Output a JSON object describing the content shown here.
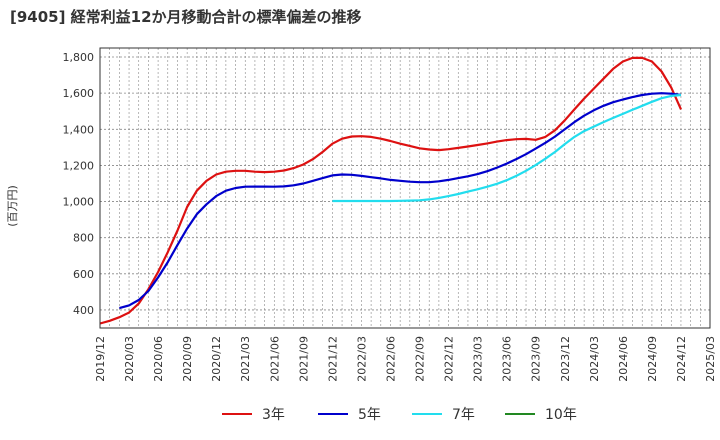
{
  "chart_data": {
    "type": "line",
    "title": "[9405]  経常利益12か月移動合計の標準偏差の推移",
    "ylabel": "(百万円)",
    "xlabel": "",
    "ylim": [
      300,
      1850
    ],
    "yticks": [
      400,
      600,
      800,
      1000,
      1200,
      1400,
      1600,
      1800
    ],
    "ytick_labels": [
      "400",
      "600",
      "800",
      "1,000",
      "1,200",
      "1,400",
      "1,600",
      "1,800"
    ],
    "x_start": "2019/12",
    "x_end": "2025/03",
    "xtick_labels": [
      "2019/12",
      "2020/03",
      "2020/06",
      "2020/09",
      "2020/12",
      "2021/03",
      "2021/06",
      "2021/09",
      "2021/12",
      "2022/03",
      "2022/06",
      "2022/09",
      "2022/12",
      "2023/03",
      "2023/06",
      "2023/09",
      "2023/12",
      "2024/03",
      "2024/06",
      "2024/09",
      "2024/12",
      "2025/03"
    ],
    "grid": true,
    "legend_position": "bottom",
    "series": [
      {
        "name": "3年",
        "color": "#dd1111",
        "x": [
          "2019/12",
          "2020/01",
          "2020/02",
          "2020/03",
          "2020/04",
          "2020/05",
          "2020/06",
          "2020/07",
          "2020/08",
          "2020/09",
          "2020/10",
          "2020/11",
          "2020/12",
          "2021/01",
          "2021/02",
          "2021/03",
          "2021/04",
          "2021/05",
          "2021/06",
          "2021/07",
          "2021/08",
          "2021/09",
          "2021/10",
          "2021/11",
          "2021/12",
          "2022/01",
          "2022/02",
          "2022/03",
          "2022/04",
          "2022/05",
          "2022/06",
          "2022/07",
          "2022/08",
          "2022/09",
          "2022/10",
          "2022/11",
          "2022/12",
          "2023/01",
          "2023/02",
          "2023/03",
          "2023/04",
          "2023/05",
          "2023/06",
          "2023/07",
          "2023/08",
          "2023/09",
          "2023/10",
          "2023/11",
          "2023/12",
          "2024/01",
          "2024/02",
          "2024/03",
          "2024/04",
          "2024/05",
          "2024/06",
          "2024/07",
          "2024/08",
          "2024/09",
          "2024/10",
          "2024/11",
          "2024/12"
        ],
        "values": [
          325,
          340,
          360,
          385,
          435,
          515,
          610,
          720,
          840,
          970,
          1060,
          1115,
          1150,
          1165,
          1170,
          1170,
          1165,
          1163,
          1165,
          1172,
          1185,
          1205,
          1235,
          1275,
          1320,
          1348,
          1360,
          1362,
          1358,
          1348,
          1335,
          1320,
          1308,
          1295,
          1288,
          1285,
          1290,
          1297,
          1305,
          1313,
          1322,
          1332,
          1340,
          1345,
          1347,
          1342,
          1358,
          1395,
          1450,
          1510,
          1570,
          1625,
          1680,
          1735,
          1775,
          1795,
          1795,
          1775,
          1720,
          1630,
          1510
        ]
      },
      {
        "name": "5年",
        "color": "#0000cc",
        "x": [
          "2020/02",
          "2020/03",
          "2020/04",
          "2020/05",
          "2020/06",
          "2020/07",
          "2020/08",
          "2020/09",
          "2020/10",
          "2020/11",
          "2020/12",
          "2021/01",
          "2021/02",
          "2021/03",
          "2021/04",
          "2021/05",
          "2021/06",
          "2021/07",
          "2021/08",
          "2021/09",
          "2021/10",
          "2021/11",
          "2021/12",
          "2022/01",
          "2022/02",
          "2022/03",
          "2022/04",
          "2022/05",
          "2022/06",
          "2022/07",
          "2022/08",
          "2022/09",
          "2022/10",
          "2022/11",
          "2022/12",
          "2023/01",
          "2023/02",
          "2023/03",
          "2023/04",
          "2023/05",
          "2023/06",
          "2023/07",
          "2023/08",
          "2023/09",
          "2023/10",
          "2023/11",
          "2023/12",
          "2024/01",
          "2024/02",
          "2024/03",
          "2024/04",
          "2024/05",
          "2024/06",
          "2024/07",
          "2024/08",
          "2024/09",
          "2024/10",
          "2024/11",
          "2024/12"
        ],
        "values": [
          410,
          425,
          455,
          505,
          580,
          665,
          760,
          850,
          930,
          985,
          1030,
          1060,
          1075,
          1082,
          1083,
          1083,
          1082,
          1084,
          1090,
          1100,
          1115,
          1130,
          1145,
          1150,
          1148,
          1142,
          1135,
          1128,
          1120,
          1115,
          1110,
          1107,
          1107,
          1112,
          1120,
          1130,
          1140,
          1152,
          1168,
          1188,
          1210,
          1235,
          1262,
          1293,
          1325,
          1360,
          1400,
          1440,
          1475,
          1505,
          1530,
          1550,
          1565,
          1578,
          1590,
          1597,
          1600,
          1597,
          1590
        ]
      },
      {
        "name": "7年",
        "color": "#22ddee",
        "x": [
          "2021/12",
          "2022/01",
          "2022/02",
          "2022/03",
          "2022/04",
          "2022/05",
          "2022/06",
          "2022/07",
          "2022/08",
          "2022/09",
          "2022/10",
          "2022/11",
          "2022/12",
          "2023/01",
          "2023/02",
          "2023/03",
          "2023/04",
          "2023/05",
          "2023/06",
          "2023/07",
          "2023/08",
          "2023/09",
          "2023/10",
          "2023/11",
          "2023/12",
          "2024/01",
          "2024/02",
          "2024/03",
          "2024/04",
          "2024/05",
          "2024/06",
          "2024/07",
          "2024/08",
          "2024/09",
          "2024/10",
          "2024/11",
          "2024/12"
        ],
        "values": [
          1003,
          1003,
          1003,
          1003,
          1003,
          1003,
          1003,
          1004,
          1005,
          1007,
          1012,
          1020,
          1030,
          1042,
          1055,
          1068,
          1082,
          1098,
          1118,
          1142,
          1170,
          1202,
          1237,
          1275,
          1318,
          1358,
          1390,
          1415,
          1440,
          1463,
          1485,
          1508,
          1530,
          1552,
          1572,
          1585,
          1590
        ]
      },
      {
        "name": "10年",
        "color": "#228822",
        "x": [],
        "values": []
      }
    ]
  }
}
